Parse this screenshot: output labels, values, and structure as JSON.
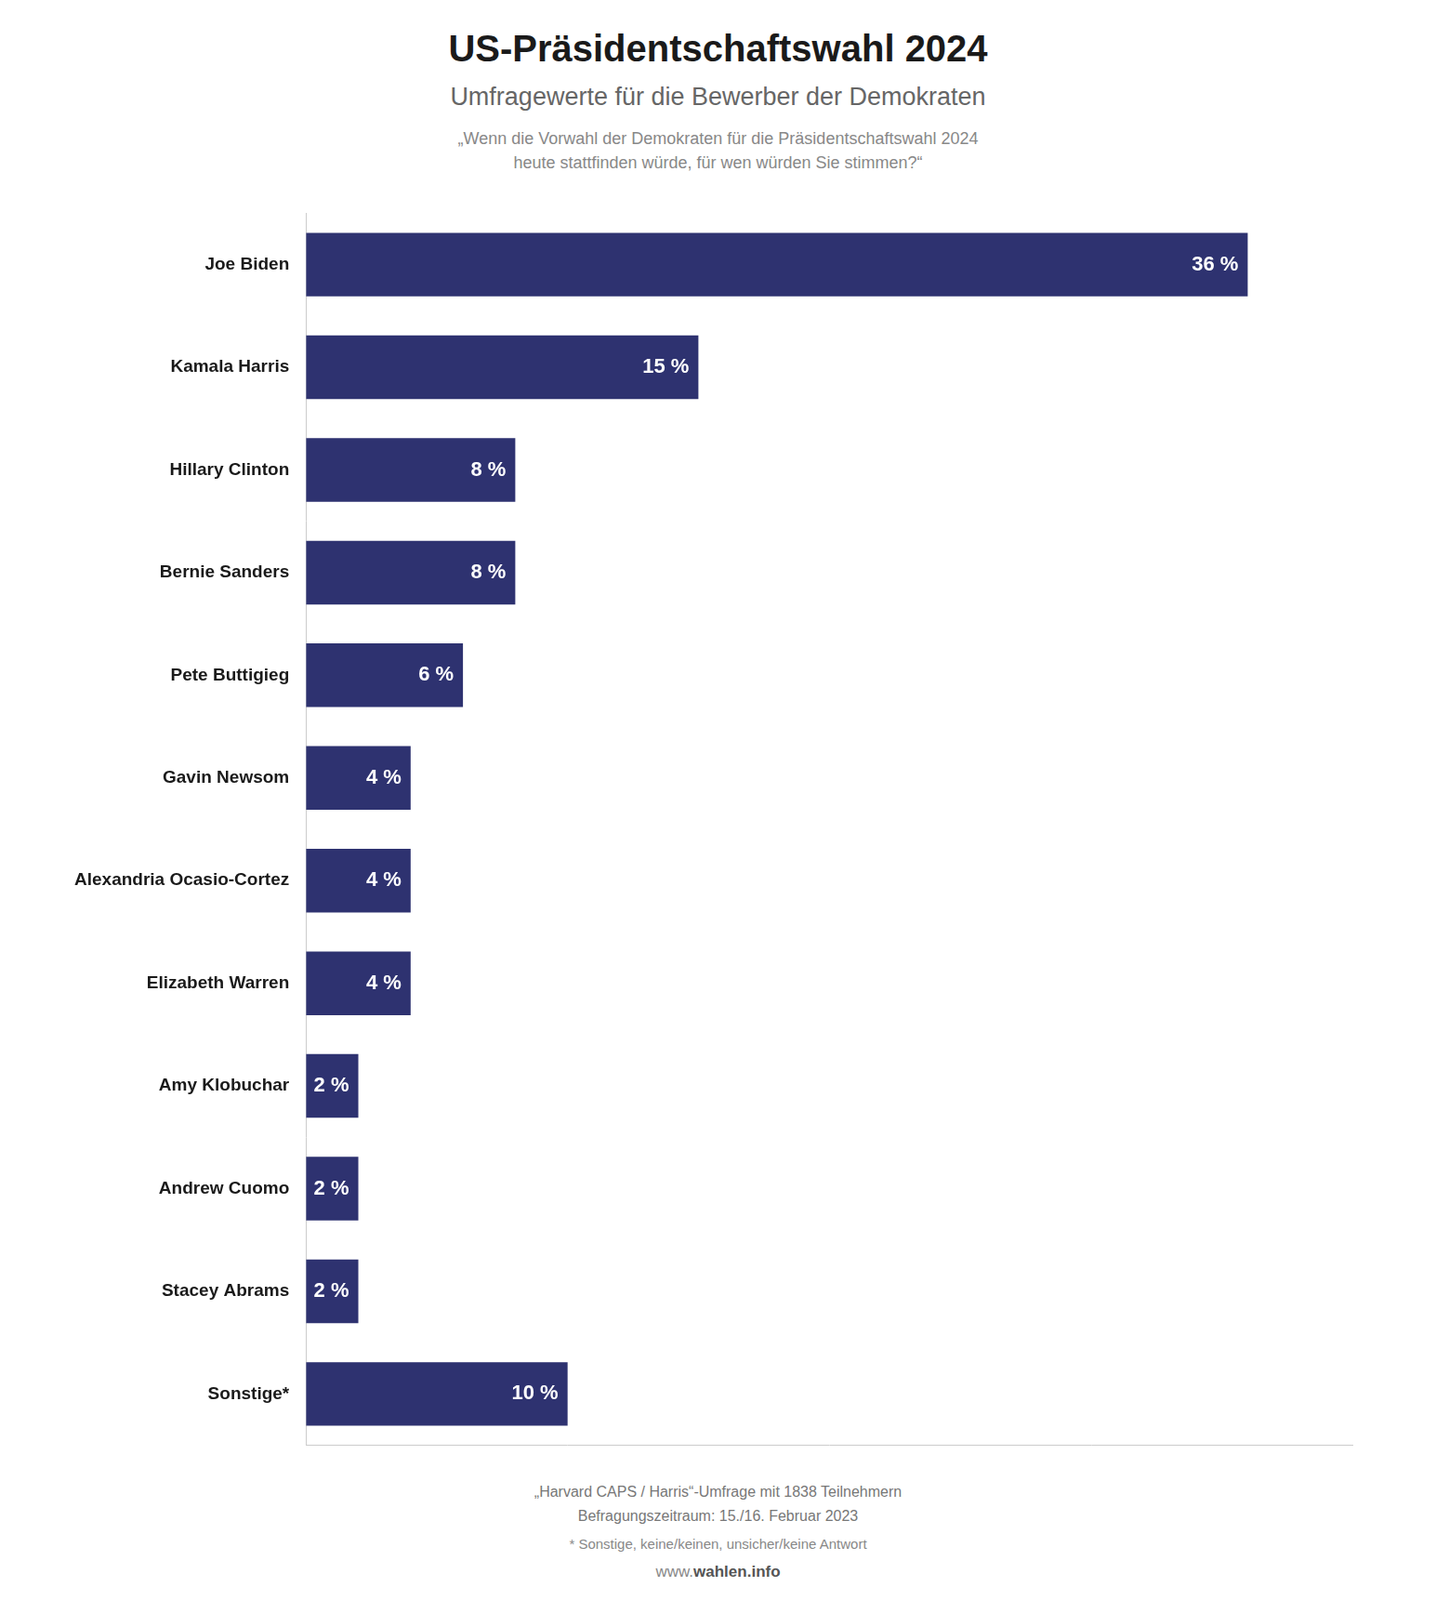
{
  "chart_data": {
    "type": "bar",
    "orientation": "horizontal",
    "title": "US-Präsidentschaftswahl 2024",
    "subtitle": "Umfragewerte für die Bewerber der Demokraten",
    "annotations": [
      "„Wenn die Vorwahl der Demokraten für die Präsidentschaftswahl 2024",
      "heute stattfinden würde, für wen würden Sie stimmen?“",
      "„Harvard CAPS / Harris“-Umfrage mit 1838 Teilnehmern",
      "Befragungszeitraum: 15./16. Februar 2023",
      "* Sonstige, keine/keinen, unsicher/keine Antwort",
      "www.",
      "wahlen.info"
    ],
    "categories": [
      "Joe Biden",
      "Kamala Harris",
      "Hillary Clinton",
      "Bernie Sanders",
      "Pete Buttigieg",
      "Gavin Newsom",
      "Alexandria Ocasio-Cortez",
      "Elizabeth Warren",
      "Amy Klobuchar",
      "Andrew Cuomo",
      "Stacey Abrams",
      "Sonstige*"
    ],
    "values": [
      36,
      15,
      8,
      8,
      6,
      4,
      4,
      4,
      2,
      2,
      2,
      10
    ],
    "value_labels": [
      "36 %",
      "15 %",
      "8 %",
      "8 %",
      "6 %",
      "4 %",
      "4 %",
      "4 %",
      "2 %",
      "2 %",
      "2 %",
      "10 %"
    ],
    "color": "#2E3270",
    "xlim": [
      0,
      40
    ],
    "grid": false,
    "data_labels": true,
    "tick_labels": "y"
  }
}
